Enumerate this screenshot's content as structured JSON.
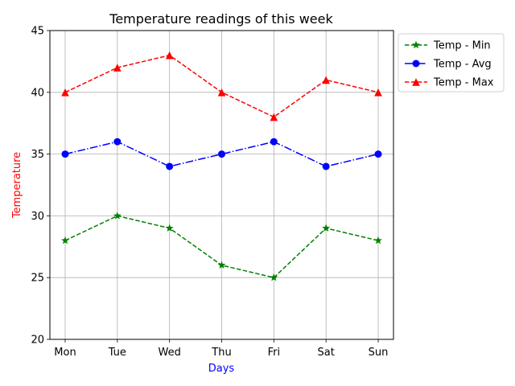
{
  "chart_data": {
    "type": "line",
    "title": "Temperature readings of this week",
    "xlabel": "Days",
    "ylabel": "Temperature",
    "xlabel_color": "#0000ff",
    "ylabel_color": "#ff0000",
    "categories": [
      "Mon",
      "Tue",
      "Wed",
      "Thu",
      "Fri",
      "Sat",
      "Sun"
    ],
    "ylim": [
      20,
      45
    ],
    "yticks": [
      "20",
      "25",
      "30",
      "35",
      "40",
      "45"
    ],
    "grid": true,
    "legend_position": "outside-top-right",
    "series": [
      {
        "name": "Temp - Min",
        "values": [
          28,
          30,
          29,
          26,
          25,
          29,
          28
        ],
        "color": "#008000",
        "linestyle": "dashed",
        "marker": "star"
      },
      {
        "name": "Temp - Avg",
        "values": [
          35,
          36,
          34,
          35,
          36,
          34,
          35
        ],
        "color": "#0000ff",
        "linestyle": "dashdot",
        "marker": "circle"
      },
      {
        "name": "Temp - Max",
        "values": [
          40,
          42,
          43,
          40,
          38,
          41,
          40
        ],
        "color": "#ff0000",
        "linestyle": "dashed",
        "marker": "triangle"
      }
    ]
  }
}
